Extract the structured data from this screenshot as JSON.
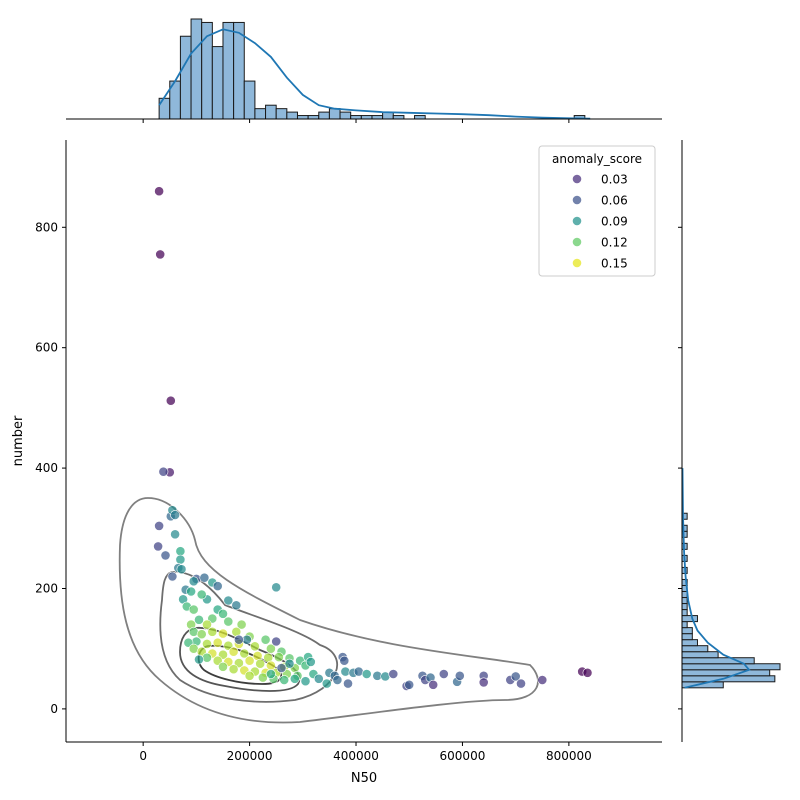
{
  "chart_data": [
    {
      "type": "scatter",
      "panel": "joint",
      "xlabel": "N50",
      "ylabel": "number",
      "xlim": [
        -145000,
        975000
      ],
      "ylim": [
        -55,
        945
      ],
      "xticks": [
        0,
        200000,
        400000,
        600000,
        800000
      ],
      "yticks": [
        0,
        200,
        400,
        600,
        800
      ],
      "grid": false,
      "legend": {
        "title": "anomaly_score",
        "placement": "top-right",
        "entries": [
          {
            "label": "0.03",
            "color": "#472d7b"
          },
          {
            "label": "0.06",
            "color": "#3b528b"
          },
          {
            "label": "0.09",
            "color": "#21918c"
          },
          {
            "label": "0.12",
            "color": "#5ec962"
          },
          {
            "label": "0.15",
            "color": "#e5e419"
          }
        ]
      },
      "colormap": [
        "#440154",
        "#472d7b",
        "#3b528b",
        "#2c728e",
        "#21918c",
        "#28ae80",
        "#5ec962",
        "#addc30",
        "#fde725"
      ],
      "score_range": [
        0.02,
        0.17
      ],
      "points": [
        [
          30000,
          860,
          0.02
        ],
        [
          32000,
          755,
          0.02
        ],
        [
          52000,
          512,
          0.02
        ],
        [
          50000,
          393,
          0.03
        ],
        [
          38000,
          394,
          0.05
        ],
        [
          30000,
          304,
          0.05
        ],
        [
          28000,
          270,
          0.05
        ],
        [
          42000,
          255,
          0.06
        ],
        [
          52000,
          320,
          0.07
        ],
        [
          55000,
          330,
          0.09
        ],
        [
          60000,
          322,
          0.08
        ],
        [
          60000,
          290,
          0.09
        ],
        [
          70000,
          262,
          0.11
        ],
        [
          70000,
          248,
          0.1
        ],
        [
          66000,
          234,
          0.08
        ],
        [
          72000,
          232,
          0.09
        ],
        [
          55000,
          220,
          0.06
        ],
        [
          100000,
          216,
          0.06
        ],
        [
          115000,
          218,
          0.07
        ],
        [
          130000,
          210,
          0.1
        ],
        [
          140000,
          204,
          0.07
        ],
        [
          250000,
          202,
          0.09
        ],
        [
          95000,
          212,
          0.09
        ],
        [
          80000,
          198,
          0.08
        ],
        [
          90000,
          195,
          0.11
        ],
        [
          120000,
          182,
          0.1
        ],
        [
          110000,
          190,
          0.12
        ],
        [
          160000,
          180,
          0.09
        ],
        [
          175000,
          172,
          0.08
        ],
        [
          75000,
          182,
          0.1
        ],
        [
          82000,
          170,
          0.12
        ],
        [
          95000,
          165,
          0.13
        ],
        [
          140000,
          165,
          0.11
        ],
        [
          150000,
          158,
          0.12
        ],
        [
          130000,
          150,
          0.13
        ],
        [
          105000,
          148,
          0.12
        ],
        [
          90000,
          140,
          0.14
        ],
        [
          120000,
          140,
          0.15
        ],
        [
          160000,
          145,
          0.13
        ],
        [
          185000,
          140,
          0.14
        ],
        [
          95000,
          128,
          0.13
        ],
        [
          110000,
          124,
          0.14
        ],
        [
          130000,
          128,
          0.15
        ],
        [
          150000,
          125,
          0.16
        ],
        [
          175000,
          128,
          0.15
        ],
        [
          200000,
          120,
          0.14
        ],
        [
          230000,
          115,
          0.13
        ],
        [
          100000,
          112,
          0.12
        ],
        [
          85000,
          110,
          0.12
        ],
        [
          120000,
          108,
          0.15
        ],
        [
          140000,
          110,
          0.16
        ],
        [
          160000,
          105,
          0.15
        ],
        [
          180000,
          108,
          0.16
        ],
        [
          210000,
          104,
          0.15
        ],
        [
          240000,
          100,
          0.14
        ],
        [
          260000,
          95,
          0.13
        ],
        [
          95000,
          100,
          0.14
        ],
        [
          110000,
          95,
          0.15
        ],
        [
          130000,
          92,
          0.16
        ],
        [
          150000,
          90,
          0.15
        ],
        [
          170000,
          95,
          0.16
        ],
        [
          190000,
          92,
          0.15
        ],
        [
          215000,
          88,
          0.16
        ],
        [
          235000,
          85,
          0.15
        ],
        [
          255000,
          86,
          0.14
        ],
        [
          275000,
          84,
          0.13
        ],
        [
          295000,
          80,
          0.12
        ],
        [
          120000,
          85,
          0.13
        ],
        [
          140000,
          80,
          0.15
        ],
        [
          160000,
          78,
          0.16
        ],
        [
          180000,
          76,
          0.15
        ],
        [
          200000,
          80,
          0.16
        ],
        [
          220000,
          75,
          0.15
        ],
        [
          240000,
          72,
          0.16
        ],
        [
          265000,
          70,
          0.15
        ],
        [
          285000,
          68,
          0.14
        ],
        [
          305000,
          72,
          0.12
        ],
        [
          105000,
          82,
          0.1
        ],
        [
          150000,
          70,
          0.14
        ],
        [
          170000,
          66,
          0.15
        ],
        [
          190000,
          64,
          0.16
        ],
        [
          210000,
          62,
          0.15
        ],
        [
          230000,
          60,
          0.16
        ],
        [
          250000,
          60,
          0.15
        ],
        [
          270000,
          58,
          0.14
        ],
        [
          290000,
          55,
          0.13
        ],
        [
          320000,
          58,
          0.11
        ],
        [
          200000,
          55,
          0.15
        ],
        [
          225000,
          52,
          0.14
        ],
        [
          245000,
          50,
          0.13
        ],
        [
          265000,
          48,
          0.12
        ],
        [
          285000,
          50,
          0.11
        ],
        [
          305000,
          46,
          0.1
        ],
        [
          330000,
          50,
          0.09
        ],
        [
          345000,
          42,
          0.1
        ],
        [
          310000,
          86,
          0.11
        ],
        [
          315000,
          78,
          0.1
        ],
        [
          375000,
          86,
          0.06
        ],
        [
          378000,
          80,
          0.06
        ],
        [
          350000,
          60,
          0.08
        ],
        [
          360000,
          55,
          0.07
        ],
        [
          380000,
          62,
          0.09
        ],
        [
          395000,
          60,
          0.08
        ],
        [
          405000,
          62,
          0.07
        ],
        [
          420000,
          58,
          0.1
        ],
        [
          440000,
          55,
          0.08
        ],
        [
          455000,
          54,
          0.09
        ],
        [
          385000,
          42,
          0.06
        ],
        [
          365000,
          48,
          0.07
        ],
        [
          470000,
          58,
          0.05
        ],
        [
          495000,
          38,
          0.05
        ],
        [
          500000,
          40,
          0.06
        ],
        [
          525000,
          55,
          0.06
        ],
        [
          530000,
          48,
          0.05
        ],
        [
          540000,
          52,
          0.07
        ],
        [
          545000,
          40,
          0.04
        ],
        [
          565000,
          58,
          0.05
        ],
        [
          590000,
          45,
          0.07
        ],
        [
          595000,
          55,
          0.06
        ],
        [
          640000,
          55,
          0.05
        ],
        [
          640000,
          44,
          0.04
        ],
        [
          690000,
          48,
          0.05
        ],
        [
          700000,
          54,
          0.06
        ],
        [
          710000,
          42,
          0.05
        ],
        [
          750000,
          48,
          0.04
        ],
        [
          825000,
          62,
          0.02
        ],
        [
          835000,
          60,
          0.02
        ],
        [
          250000,
          112,
          0.05
        ],
        [
          260000,
          68,
          0.06
        ],
        [
          275000,
          75,
          0.09
        ],
        [
          240000,
          58,
          0.11
        ],
        [
          195000,
          115,
          0.08
        ],
        [
          180000,
          115,
          0.06
        ]
      ]
    },
    {
      "type": "bar",
      "panel": "top-marginal-histogram",
      "bin_edges": [
        30000,
        50000,
        70000,
        90000,
        110000,
        130000,
        150000,
        170000,
        190000,
        210000,
        230000,
        250000,
        270000,
        290000,
        310000,
        330000,
        350000,
        370000,
        390000,
        410000,
        430000,
        450000,
        470000,
        490000,
        510000,
        530000,
        550000,
        570000,
        590000,
        610000,
        630000,
        650000,
        670000,
        690000,
        710000,
        730000,
        750000,
        770000,
        790000,
        810000,
        830000,
        850000
      ],
      "values": [
        6,
        11,
        24,
        29,
        28,
        21,
        28,
        28,
        11,
        3,
        4,
        3,
        2,
        1,
        1,
        2,
        3,
        2,
        1,
        1,
        1,
        2,
        1,
        0,
        1,
        0,
        0,
        0,
        0,
        0,
        0,
        0,
        0,
        0,
        0,
        0,
        0,
        0,
        0,
        1,
        0
      ],
      "kde": [
        [
          30000,
          4
        ],
        [
          60000,
          11
        ],
        [
          90000,
          19
        ],
        [
          120000,
          24
        ],
        [
          150000,
          26
        ],
        [
          180000,
          25
        ],
        [
          210000,
          22
        ],
        [
          240000,
          18
        ],
        [
          270000,
          12
        ],
        [
          300000,
          7
        ],
        [
          330000,
          4
        ],
        [
          360000,
          3
        ],
        [
          400000,
          2.5
        ],
        [
          450000,
          2
        ],
        [
          500000,
          1.8
        ],
        [
          550000,
          1.6
        ],
        [
          600000,
          1.4
        ],
        [
          650000,
          1.1
        ],
        [
          700000,
          0.7
        ],
        [
          750000,
          0.4
        ],
        [
          800000,
          0.2
        ],
        [
          840000,
          0.1
        ]
      ]
    },
    {
      "type": "bar",
      "panel": "right-marginal-histogram",
      "orientation": "horizontal",
      "bin_edges": [
        35,
        45,
        55,
        65,
        75,
        85,
        95,
        105,
        115,
        125,
        135,
        145,
        155,
        165,
        175,
        185,
        195,
        205,
        215,
        225,
        235,
        245,
        255,
        265,
        275,
        285,
        295,
        305,
        315,
        325
      ],
      "values": [
        8,
        18,
        17,
        19,
        14,
        7,
        5,
        3,
        2,
        2,
        1,
        3,
        1,
        1,
        1,
        1,
        1,
        1,
        0,
        1,
        0,
        1,
        0,
        1,
        0,
        1,
        1,
        0,
        1
      ],
      "kde": [
        [
          35,
          0.5
        ],
        [
          50,
          8
        ],
        [
          65,
          13
        ],
        [
          75,
          12
        ],
        [
          90,
          8
        ],
        [
          110,
          5
        ],
        [
          130,
          3
        ],
        [
          150,
          2
        ],
        [
          180,
          1.2
        ],
        [
          220,
          0.7
        ],
        [
          260,
          0.4
        ],
        [
          320,
          0.2
        ],
        [
          400,
          0.1
        ]
      ]
    }
  ]
}
